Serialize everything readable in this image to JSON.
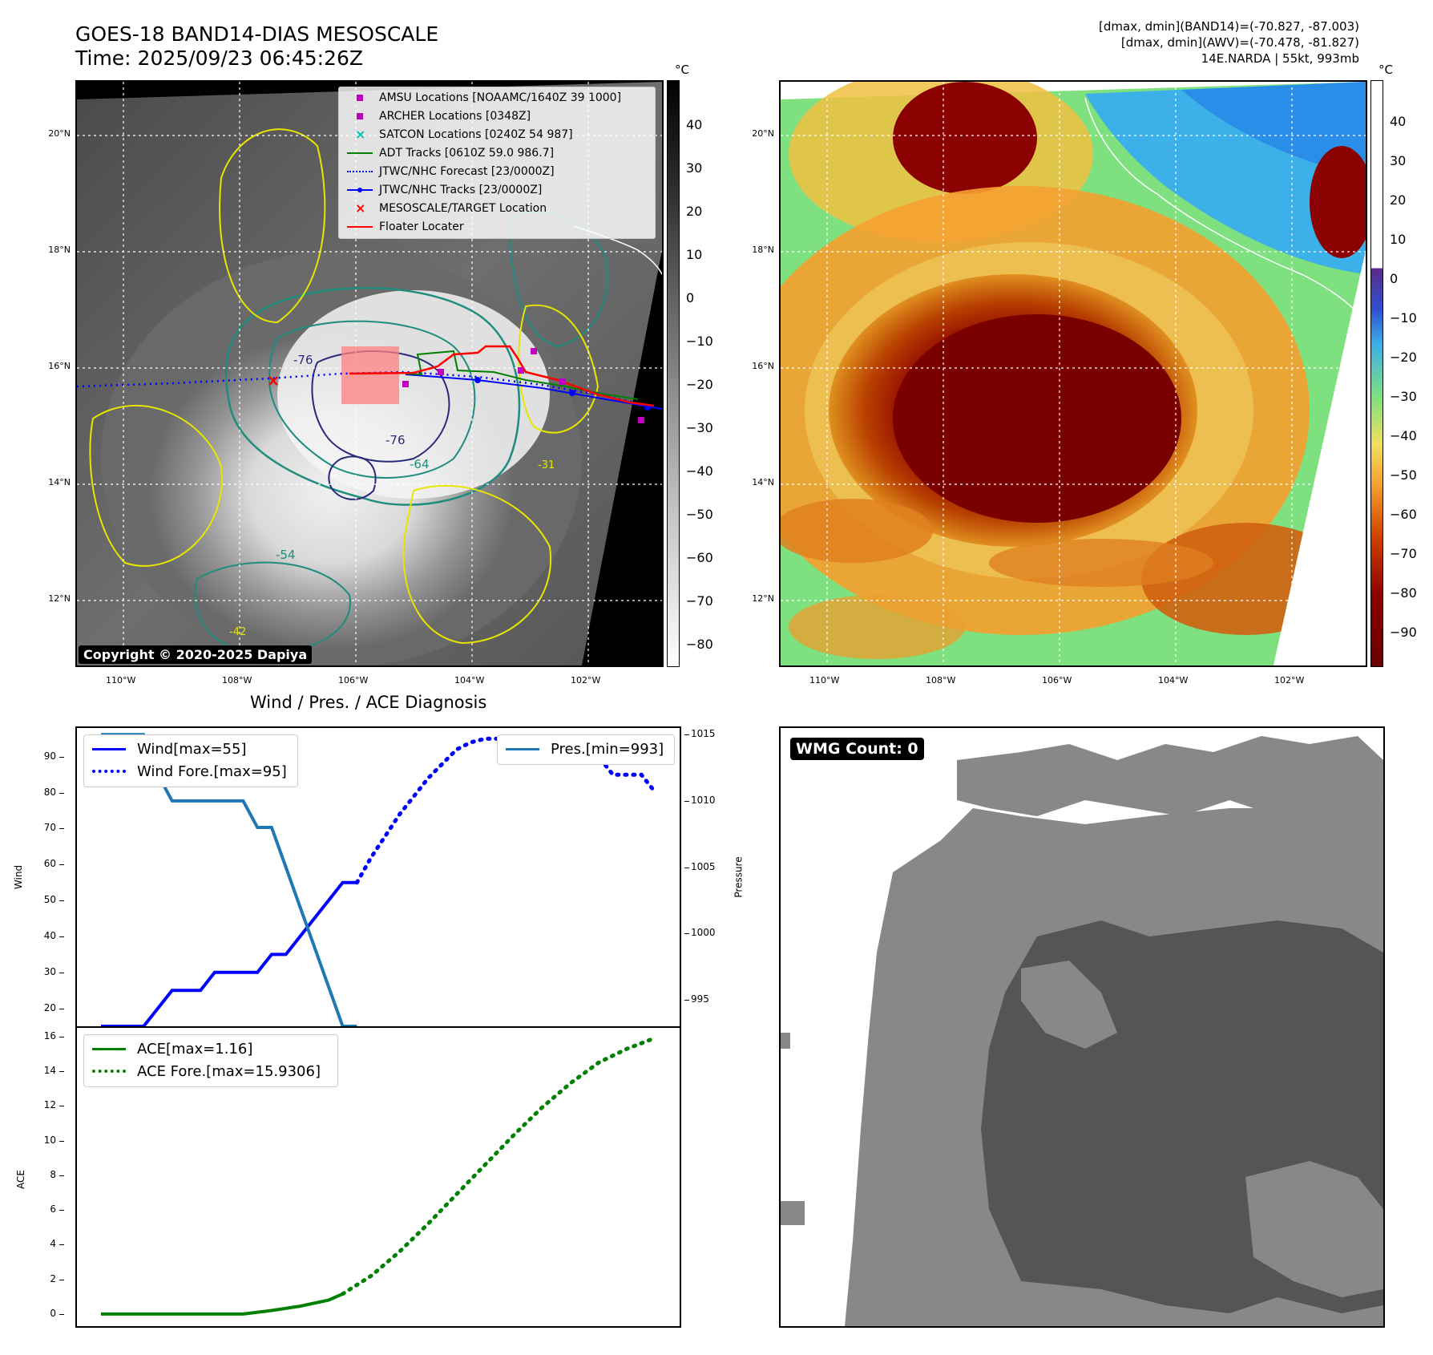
{
  "header": {
    "title_line1": "GOES-18 BAND14-DIAS MESOSCALE",
    "title_line2": "Time: 2025/09/23 06:45:26Z",
    "info_line1": "[dmax, dmin](BAND14)=(-70.827, -87.003)",
    "info_line2": "[dmax, dmin](AWV)=(-70.478, -81.827)",
    "info_line3": "14E.NARDA | 55kt, 993mb"
  },
  "map_axes": {
    "lat_labels": [
      "20°N",
      "18°N",
      "16°N",
      "14°N",
      "12°N"
    ],
    "lon_labels": [
      "110°W",
      "108°W",
      "106°W",
      "104°W",
      "102°W"
    ]
  },
  "colorbar_left": {
    "unit": "°C",
    "ticks": [
      "40",
      "30",
      "20",
      "10",
      "0",
      "−10",
      "−20",
      "−30",
      "−40",
      "−50",
      "−60",
      "−70",
      "−80"
    ]
  },
  "colorbar_right": {
    "unit": "°C",
    "ticks": [
      "40",
      "30",
      "20",
      "10",
      "0",
      "−10",
      "−20",
      "−30",
      "−40",
      "−50",
      "−60",
      "−70",
      "−80",
      "−90"
    ]
  },
  "legend": {
    "items": [
      {
        "label": "AMSU Locations [NOAAMC/1640Z 39 1000]",
        "color": "#bf00bf",
        "symbol": "square"
      },
      {
        "label": "ARCHER Locations [0348Z]",
        "color": "#bf00bf",
        "symbol": "square"
      },
      {
        "label": "SATCON Locations [0240Z 54 987]",
        "color": "#00bfbf",
        "symbol": "x"
      },
      {
        "label": "ADT Tracks [0610Z 59.0 986.7]",
        "color": "#008000",
        "symbol": "line"
      },
      {
        "label": "JTWC/NHC Forecast [23/0000Z]",
        "color": "#0000ff",
        "symbol": "dotted"
      },
      {
        "label": "JTWC/NHC Tracks [23/0000Z]",
        "color": "#0000ff",
        "symbol": "line-dot"
      },
      {
        "label": "MESOSCALE/TARGET Location",
        "color": "#ff0000",
        "symbol": "x"
      },
      {
        "label": "Floater Locater",
        "color": "#ff0000",
        "symbol": "line"
      }
    ]
  },
  "copyright": "Copyright © 2020-2025 Dapiya",
  "contour_labels": [
    "-76",
    "-64",
    "-76",
    "-54",
    "-31",
    "-42"
  ],
  "wmg": {
    "label": "WMG Count: 0"
  },
  "diagnosis": {
    "title": "Wind / Pres. / ACE Diagnosis"
  },
  "chart_data": [
    {
      "type": "line",
      "title": "Wind / Pres. / ACE Diagnosis",
      "ylabel": "Wind",
      "y2label": "Pressure",
      "ylim": [
        15,
        98
      ],
      "y2lim": [
        993,
        1015.5
      ],
      "yticks": [
        "90",
        "80",
        "70",
        "60",
        "50",
        "40",
        "30",
        "20"
      ],
      "y2ticks": [
        "1015",
        "1010",
        "1005",
        "1000",
        "995"
      ],
      "series": [
        {
          "name": "Wind[max=55]",
          "axis": "left",
          "style": "solid",
          "color": "#0000ff",
          "x": [
            0,
            1,
            2,
            3,
            4,
            5,
            6,
            7,
            8,
            9,
            10,
            11,
            12,
            13,
            14,
            15,
            16,
            17,
            18
          ],
          "values": [
            15,
            15,
            15,
            15,
            20,
            25,
            25,
            25,
            30,
            30,
            30,
            30,
            35,
            35,
            40,
            45,
            50,
            55,
            55
          ]
        },
        {
          "name": "Wind Fore.[max=95]",
          "axis": "left",
          "style": "dotted",
          "color": "#0000ff",
          "x": [
            18,
            19,
            20,
            21,
            22,
            23,
            24,
            25,
            26,
            27,
            28,
            29,
            30,
            31,
            32,
            33,
            34,
            35,
            36,
            37,
            38,
            39
          ],
          "values": [
            55,
            62,
            68,
            74,
            79,
            84,
            88,
            92,
            94,
            95,
            95,
            95,
            95,
            95,
            95,
            95,
            94,
            90,
            85,
            85,
            85,
            80
          ]
        },
        {
          "name": "Pres.[min=993]",
          "axis": "right",
          "style": "solid",
          "color": "#1f77b4",
          "x": [
            0,
            2,
            3,
            4,
            5,
            6,
            7,
            8,
            9,
            10,
            11,
            12,
            13,
            14,
            15,
            16,
            17,
            18
          ],
          "values": [
            1015,
            1015,
            1015,
            1012,
            1010,
            1010,
            1010,
            1010,
            1010,
            1010,
            1008,
            1008,
            1005,
            1002,
            999,
            996,
            993,
            993
          ]
        }
      ]
    },
    {
      "type": "line",
      "ylabel": "ACE",
      "ylim": [
        -0.7,
        16.5
      ],
      "yticks": [
        "16",
        "14",
        "12",
        "10",
        "8",
        "6",
        "4",
        "2",
        "0"
      ],
      "series": [
        {
          "name": "ACE[max=1.16]",
          "style": "solid",
          "color": "#008000",
          "x": [
            0,
            2,
            4,
            6,
            8,
            10,
            12,
            14,
            16,
            17
          ],
          "values": [
            0,
            0,
            0,
            0,
            0,
            0,
            0.2,
            0.45,
            0.8,
            1.16
          ]
        },
        {
          "name": "ACE Fore.[max=15.9306]",
          "style": "dotted",
          "color": "#008000",
          "x": [
            17,
            19,
            21,
            23,
            25,
            27,
            29,
            31,
            33,
            35,
            37,
            39
          ],
          "values": [
            1.16,
            2.2,
            3.6,
            5.2,
            6.9,
            8.6,
            10.3,
            11.9,
            13.3,
            14.5,
            15.3,
            15.93
          ]
        }
      ]
    }
  ]
}
